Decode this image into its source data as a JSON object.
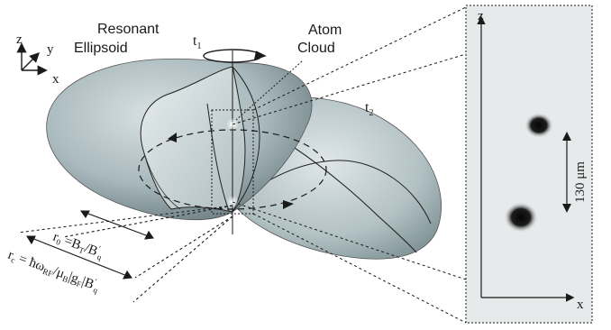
{
  "labels": {
    "resonant_line1": "Resonant",
    "resonant_line2": "Ellipsoid",
    "atom_line1": "Atom",
    "atom_line2": "Cloud",
    "t1_main": "t",
    "t1_sub": "1",
    "t2_main": "t",
    "t2_sub": "2",
    "axis_z": "z",
    "axis_y": "y",
    "axis_x": "x"
  },
  "equations": {
    "r0": "r₀ = Bₜ/B′q",
    "rc": "rᴄ = ħωRF/μB|gF|B′q"
  },
  "inset": {
    "axis_z": "z",
    "axis_x": "x",
    "scale_label": "130 μm"
  },
  "colors": {
    "ellipsoid_fill": "#b4c2c6",
    "ellipsoid_dark": "#6d7f84",
    "inset_bg": "#e7eaeb",
    "line": "#1a1a1a"
  }
}
